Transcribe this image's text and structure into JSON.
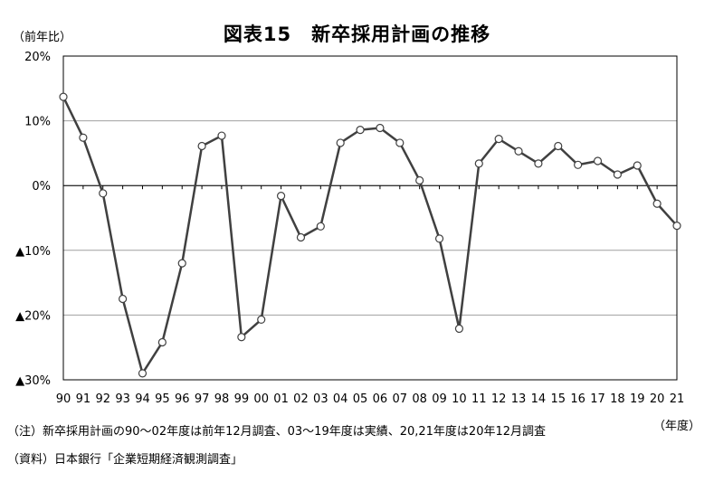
{
  "chart_data": {
    "type": "line",
    "title": "図表15　新卒採用計画の推移",
    "ylabel": "（前年比）",
    "xlabel": "（年度）",
    "ylim": [
      -30,
      20
    ],
    "yticks": [
      20,
      10,
      0,
      -10,
      -20,
      -30
    ],
    "ytick_labels": [
      "20%",
      "10%",
      "0%",
      "▲10%",
      "▲20%",
      "▲30%"
    ],
    "grid": true,
    "categories": [
      "90",
      "91",
      "92",
      "93",
      "94",
      "95",
      "96",
      "97",
      "98",
      "99",
      "00",
      "01",
      "02",
      "03",
      "04",
      "05",
      "06",
      "07",
      "08",
      "09",
      "10",
      "11",
      "12",
      "13",
      "14",
      "15",
      "16",
      "17",
      "18",
      "19",
      "20",
      "21"
    ],
    "series": [
      {
        "values": [
          13.7,
          7.4,
          -1.2,
          -17.5,
          -29.0,
          -24.2,
          -12.0,
          6.1,
          7.7,
          -23.4,
          -20.7,
          -1.6,
          -8.0,
          -6.3,
          6.6,
          8.6,
          8.9,
          6.6,
          0.8,
          -8.2,
          -22.1,
          3.4,
          7.2,
          5.3,
          3.4,
          6.1,
          3.2,
          3.8,
          1.7,
          3.1,
          -2.8,
          -6.2
        ]
      }
    ],
    "colors": {
      "line": "#404040",
      "marker_fill": "#ffffff",
      "marker_stroke": "#404040",
      "grid": "#a0a0a0",
      "axis": "#000000"
    }
  },
  "note": "（注）新卒採用計画の90〜02年度は前年12月調査、03〜19年度は実績、20,21年度は20年12月調査",
  "source": "（資料）日本銀行「企業短期経済観測調査」"
}
